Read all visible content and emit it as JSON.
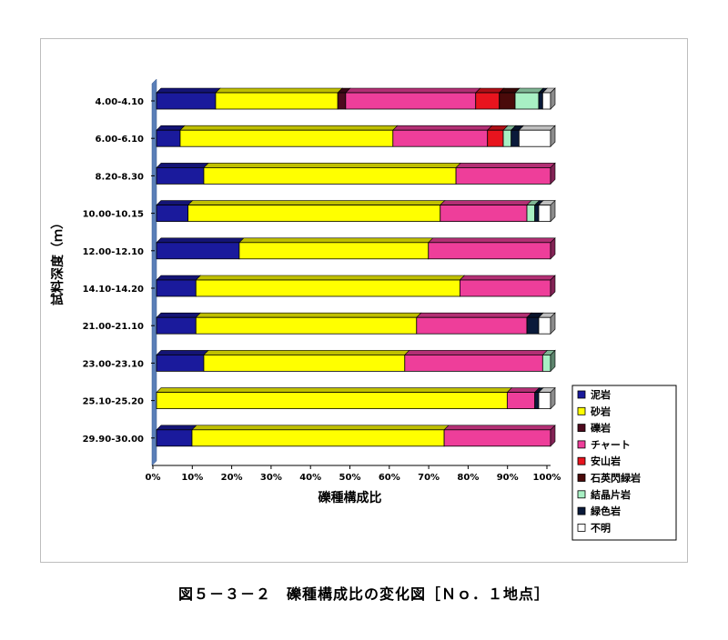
{
  "caption": "図５－３－２　礫種構成比の変化図［Ｎｏ．１地点］",
  "chart_data": {
    "type": "bar",
    "orientation": "horizontal",
    "stacked": "percent",
    "xlabel": "礫種構成比",
    "ylabel": "試料深度（ｍ）",
    "xlim": [
      0,
      100
    ],
    "xticks": [
      "0%",
      "10%",
      "20%",
      "30%",
      "40%",
      "50%",
      "60%",
      "70%",
      "80%",
      "90%",
      "100%"
    ],
    "categories": [
      "4.00-4.10",
      "6.00-6.10",
      "8.20-8.30",
      "10.00-10.15",
      "12.00-12.10",
      "14.10-14.20",
      "21.00-21.10",
      "23.00-23.10",
      "25.10-25.20",
      "29.90-30.00"
    ],
    "legend_position": "right",
    "series": [
      {
        "name": "泥岩",
        "color": "#1A1A9C",
        "values": [
          15,
          6,
          12,
          8,
          21,
          10,
          10,
          12,
          0,
          9
        ]
      },
      {
        "name": "砂岩",
        "color": "#FFFF00",
        "values": [
          31,
          54,
          64,
          64,
          48,
          67,
          56,
          51,
          89,
          64
        ]
      },
      {
        "name": "礫岩",
        "color": "#4D0A1E",
        "values": [
          2,
          0,
          0,
          0,
          0,
          0,
          0,
          0,
          0,
          0
        ]
      },
      {
        "name": "チャート",
        "color": "#EE3E9A",
        "values": [
          33,
          24,
          24,
          22,
          31,
          23,
          28,
          35,
          7,
          27
        ]
      },
      {
        "name": "安山岩",
        "color": "#E8141E",
        "values": [
          6,
          4,
          0,
          0,
          0,
          0,
          0,
          0,
          0,
          0
        ]
      },
      {
        "name": "石英閃緑岩",
        "color": "#4A0A0A",
        "values": [
          4,
          0,
          0,
          0,
          0,
          0,
          0,
          0,
          0,
          0
        ]
      },
      {
        "name": "結晶片岩",
        "color": "#A8F0C4",
        "values": [
          6,
          2,
          0,
          2,
          0,
          0,
          0,
          2,
          0,
          0
        ]
      },
      {
        "name": "緑色岩",
        "color": "#0A1A3A",
        "values": [
          1,
          2,
          0,
          1,
          0,
          0,
          3,
          0,
          1,
          0
        ]
      },
      {
        "name": "不明",
        "color": "#FFFFFF",
        "values": [
          2,
          8,
          0,
          3,
          0,
          0,
          3,
          0,
          3,
          0
        ]
      }
    ]
  }
}
